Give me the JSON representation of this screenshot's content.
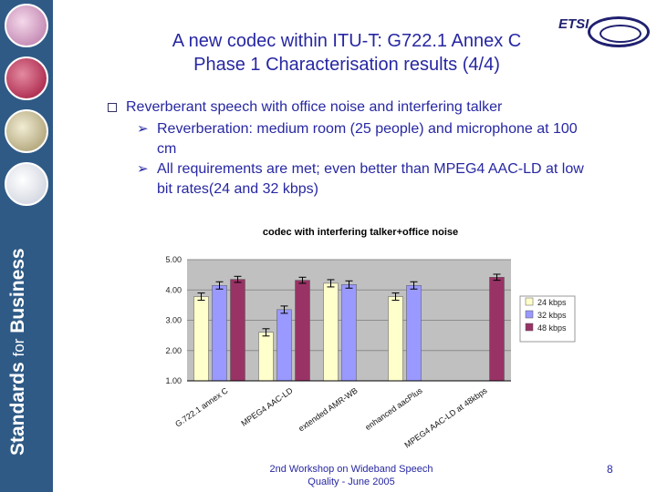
{
  "slide": {
    "title_line1": "A new codec within ITU-T: G722.1 Annex C",
    "title_line2": "Phase 1 Characterisation results (4/4)",
    "bullet_main": "Reverberant speech with office noise and interfering talker",
    "sub_bullets": [
      "Reverberation: medium room (25 people) and microphone at 100 cm",
      "All requirements are met; even better than MPEG4 AAC-LD at low bit rates(24 and 32 kbps)"
    ],
    "footer_line1": "2nd Workshop on Wideband Speech",
    "footer_line2": "Quality - June 2005",
    "page_number": "8"
  },
  "branding": {
    "sidebar_text_strong": "Standards",
    "sidebar_text_for": "for",
    "sidebar_text_business": "Business",
    "logo_text": "ETSI"
  },
  "colors": {
    "sidebar": "#2f5a86",
    "title": "#2727a3",
    "series_24": "#ffffcc",
    "series_32": "#9999ff",
    "series_48": "#993366",
    "plot_bg": "#c0c0c0"
  },
  "chart_data": {
    "type": "bar",
    "title": "codec with interfering talker+office noise",
    "categories": [
      "G.722.1 annex C",
      "MPEG4 AAC-LD",
      "extended AMR-WB",
      "enhanced aacPlus",
      "MPEG4 AAC-LD at 48kbps"
    ],
    "ylim": [
      1.0,
      5.0
    ],
    "yticks": [
      "1.00",
      "2.00",
      "3.00",
      "4.00",
      "5.00"
    ],
    "legend_position": "right",
    "series": [
      {
        "name": "24 kbps",
        "color": "#ffffcc",
        "values": [
          3.78,
          2.6,
          4.22,
          3.78,
          null
        ],
        "errors": [
          0.12,
          0.12,
          0.12,
          0.12,
          null
        ]
      },
      {
        "name": "32 kbps",
        "color": "#9999ff",
        "values": [
          4.15,
          3.35,
          4.18,
          4.15,
          null
        ],
        "errors": [
          0.12,
          0.12,
          0.12,
          0.12,
          null
        ]
      },
      {
        "name": "48 kbps",
        "color": "#993366",
        "values": [
          4.35,
          4.32,
          null,
          null,
          4.42
        ],
        "errors": [
          0.1,
          0.1,
          null,
          null,
          0.1
        ]
      }
    ]
  }
}
